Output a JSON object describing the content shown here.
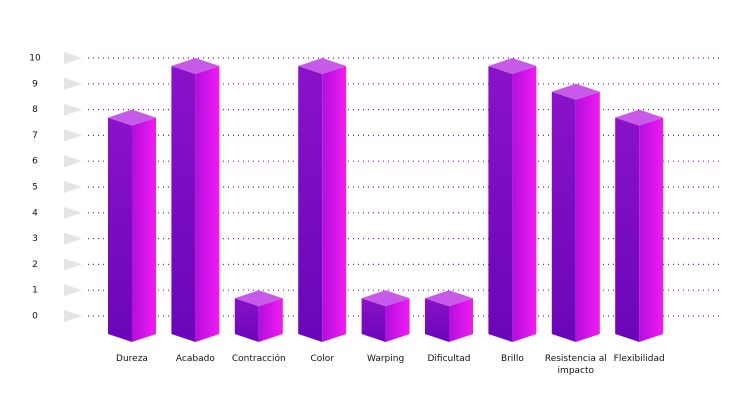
{
  "chart_data": {
    "type": "bar3d",
    "categories": [
      "Dureza",
      "Acabado",
      "Contracción",
      "Color",
      "Warping",
      "Dificultad",
      "Brillo",
      "Resistencia al impacto",
      "Flexibilidad"
    ],
    "values": [
      8,
      10,
      1,
      10,
      1,
      1,
      10,
      9,
      8
    ],
    "ylim": [
      0,
      10
    ],
    "yticks": [
      0,
      1,
      2,
      3,
      4,
      5,
      6,
      7,
      8,
      9,
      10
    ],
    "grid": true
  }
}
